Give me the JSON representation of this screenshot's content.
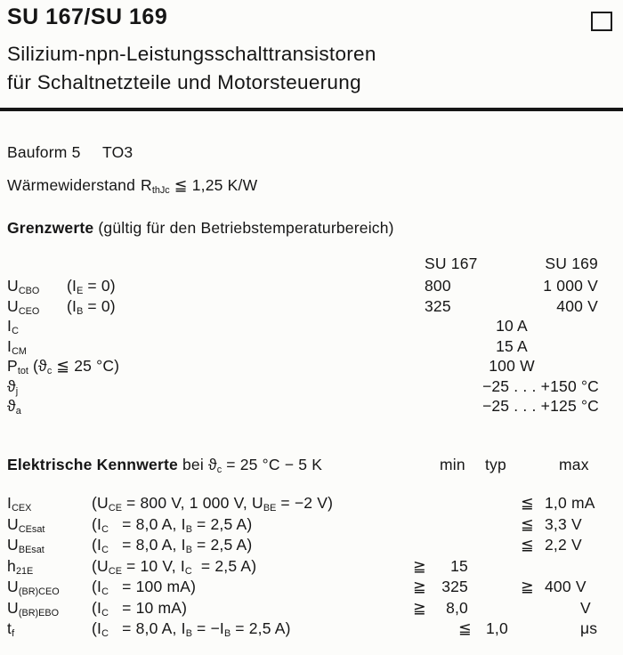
{
  "header": {
    "title": "SU 167/SU 169",
    "subtitle_line1": "Silizium-npn-Leistungsschalttransistoren",
    "subtitle_line2": "für Schaltnetzteile und Motorsteuerung"
  },
  "info": {
    "bauform": "Bauform 5",
    "package": "TO3",
    "thermal_label": "Wärmewiderstand",
    "thermal_formula": "R_{thJc} ≦ 1,25 K/W"
  },
  "limits": {
    "heading_bold": "Grenzwerte",
    "heading_rest": " (gültig für den Betriebstemperaturbereich)",
    "col_su167": "SU 167",
    "col_su169": "SU 169",
    "rows": [
      {
        "symbol": "U_{CBO}",
        "cond": "(I_{E} = 0)",
        "su167": "800",
        "su169": "1 000 V"
      },
      {
        "symbol": "U_{CEO}",
        "cond": "(I_{B} = 0)",
        "su167": "325",
        "su169": "400 V"
      },
      {
        "symbol": "I_{C}",
        "center": "10 A"
      },
      {
        "symbol": "I_{CM}",
        "center": "15 A"
      },
      {
        "symbol": "P_{tot} (ϑ_{c} ≦ 25 °C)",
        "center": "100 W"
      },
      {
        "symbol": "ϑ_{j}",
        "right": "−25 . . . +150 °C"
      },
      {
        "symbol": "ϑ_{a}",
        "right": "−25 . . . +125 °C"
      }
    ]
  },
  "electrical": {
    "heading_bold": "Elektrische Kennwerte",
    "heading_rest": " bei ϑ_{c} = 25 °C − 5 K",
    "col_min": "min",
    "col_typ": "typ",
    "col_max": "max",
    "rows": [
      {
        "symbol": "I_{CEX}",
        "cond": "(U_{CE} = 800 V, 1 000 V, U_{BE} = −2 V)",
        "max_rel": "≦",
        "max_val": "1,0 mA"
      },
      {
        "symbol": "U_{CEsat}",
        "cond": "(I_{C}   = 8,0 A, I_{B} = 2,5 A)",
        "max_rel": "≦",
        "max_val": "3,3 V"
      },
      {
        "symbol": "U_{BEsat}",
        "cond": "(I_{C}   = 8,0 A, I_{B} = 2,5 A)",
        "max_rel": "≦",
        "max_val": "2,2 V"
      },
      {
        "symbol": "h_{21E}",
        "cond": "(U_{CE} = 10 V, I_{C}  = 2,5 A)",
        "min_rel": "≧",
        "min_val": "15"
      },
      {
        "symbol": "U_{(BR)CEO}",
        "cond": "(I_{C}   = 100 mA)",
        "min_rel": "≧",
        "min_val": "325",
        "max_rel": "≧",
        "max_val": "400 V"
      },
      {
        "symbol": "U_{(BR)EBO}",
        "cond": "(I_{C}   = 10 mA)",
        "min_rel": "≧",
        "min_val": "8,0",
        "unit": "V"
      },
      {
        "symbol": "t_{f}",
        "cond": "(I_{C}   = 8,0 A, I_{B} = −I_{B} = 2,5 A)",
        "mid_rel": "≦",
        "mid_val": "1,0",
        "unit": "μs"
      }
    ]
  }
}
